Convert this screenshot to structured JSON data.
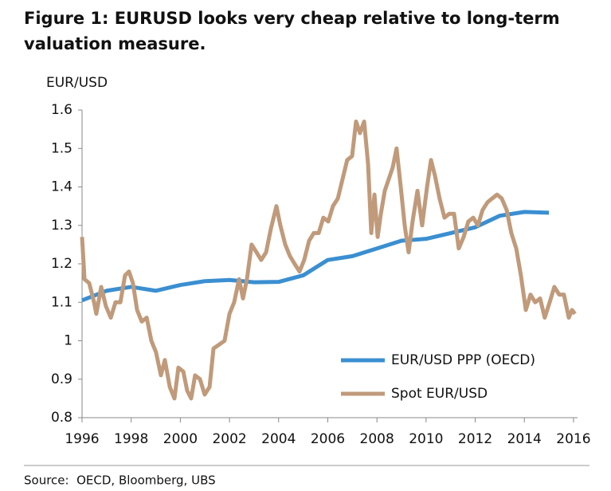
{
  "chart_data": {
    "type": "line",
    "title": "Figure 1: EURUSD looks very cheap relative to long-term valuation measure.",
    "y_label": "EUR/USD",
    "source": "Source:  OECD, Bloomberg, UBS",
    "xlim": [
      1996,
      2016.1
    ],
    "xticks": [
      1996,
      1998,
      2000,
      2002,
      2004,
      2006,
      2008,
      2010,
      2012,
      2014,
      2016
    ],
    "ylim": [
      0.8,
      1.6
    ],
    "yticks": [
      0.8,
      0.9,
      1,
      1.1,
      1.2,
      1.3,
      1.4,
      1.5,
      1.6
    ],
    "legend": "lower right",
    "series": [
      {
        "name": "EUR/USD PPP (OECD)",
        "color": "#3a8fd1",
        "x": [
          1996,
          1997,
          1998,
          1999,
          2000,
          2001,
          2002,
          2003,
          2004,
          2005,
          2006,
          2007,
          2008,
          2009,
          2010,
          2011,
          2012,
          2013,
          2014,
          2015
        ],
        "values": [
          1.105,
          1.13,
          1.14,
          1.13,
          1.145,
          1.155,
          1.158,
          1.152,
          1.153,
          1.17,
          1.21,
          1.22,
          1.24,
          1.26,
          1.265,
          1.28,
          1.295,
          1.325,
          1.335,
          1.333
        ]
      },
      {
        "name": "Spot EUR/USD",
        "color": "#c09a7a",
        "x": [
          1996.0,
          1996.1,
          1996.29,
          1996.49,
          1996.58,
          1996.78,
          1996.97,
          1997.17,
          1997.36,
          1997.56,
          1997.75,
          1997.91,
          1998.07,
          1998.24,
          1998.43,
          1998.63,
          1998.82,
          1999.01,
          1999.21,
          1999.37,
          1999.57,
          1999.76,
          1999.92,
          2000.12,
          2000.28,
          2000.44,
          2000.6,
          2000.8,
          2000.99,
          2001.19,
          2001.35,
          2001.58,
          2001.8,
          2002.0,
          2002.19,
          2002.39,
          2002.55,
          2002.71,
          2002.9,
          2003.1,
          2003.29,
          2003.49,
          2003.68,
          2003.91,
          2004.07,
          2004.27,
          2004.46,
          2004.65,
          2004.85,
          2005.04,
          2005.24,
          2005.43,
          2005.63,
          2005.82,
          2006.02,
          2006.21,
          2006.41,
          2006.6,
          2006.79,
          2006.99,
          2007.15,
          2007.31,
          2007.48,
          2007.64,
          2007.77,
          2007.9,
          2008.03,
          2008.16,
          2008.32,
          2008.48,
          2008.64,
          2008.8,
          2008.97,
          2009.13,
          2009.29,
          2009.45,
          2009.65,
          2009.84,
          2010.04,
          2010.2,
          2010.36,
          2010.55,
          2010.75,
          2010.94,
          2011.14,
          2011.33,
          2011.53,
          2011.72,
          2011.92,
          2012.11,
          2012.3,
          2012.5,
          2012.69,
          2012.89,
          2013.08,
          2013.28,
          2013.47,
          2013.67,
          2013.86,
          2014.06,
          2014.25,
          2014.44,
          2014.64,
          2014.83,
          2015.03,
          2015.22,
          2015.42,
          2015.61,
          2015.81,
          2015.94,
          2016.06
        ],
        "values": [
          1.27,
          1.16,
          1.15,
          1.1,
          1.07,
          1.14,
          1.09,
          1.06,
          1.1,
          1.1,
          1.17,
          1.18,
          1.15,
          1.08,
          1.05,
          1.06,
          1.0,
          0.97,
          0.91,
          0.95,
          0.88,
          0.85,
          0.93,
          0.92,
          0.87,
          0.85,
          0.91,
          0.9,
          0.86,
          0.88,
          0.98,
          0.99,
          1.0,
          1.07,
          1.1,
          1.16,
          1.11,
          1.16,
          1.25,
          1.23,
          1.21,
          1.23,
          1.29,
          1.35,
          1.3,
          1.25,
          1.22,
          1.2,
          1.18,
          1.21,
          1.26,
          1.28,
          1.28,
          1.32,
          1.31,
          1.35,
          1.37,
          1.42,
          1.47,
          1.48,
          1.57,
          1.54,
          1.57,
          1.46,
          1.28,
          1.38,
          1.27,
          1.33,
          1.39,
          1.42,
          1.45,
          1.5,
          1.4,
          1.3,
          1.23,
          1.31,
          1.39,
          1.3,
          1.4,
          1.47,
          1.43,
          1.37,
          1.32,
          1.33,
          1.33,
          1.24,
          1.27,
          1.31,
          1.32,
          1.3,
          1.34,
          1.36,
          1.37,
          1.38,
          1.37,
          1.34,
          1.28,
          1.24,
          1.17,
          1.08,
          1.12,
          1.1,
          1.11,
          1.06,
          1.1,
          1.14,
          1.12,
          1.12,
          1.06,
          1.08,
          1.07
        ]
      }
    ]
  }
}
